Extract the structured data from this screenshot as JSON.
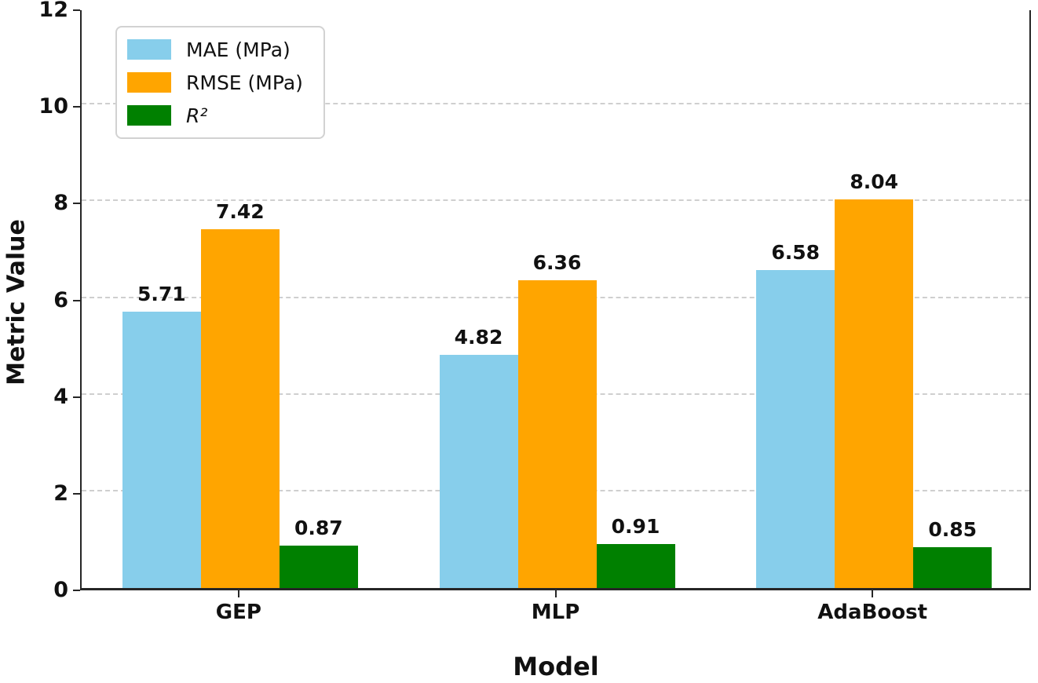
{
  "chart_data": {
    "type": "bar",
    "title": "",
    "xlabel": "Model",
    "ylabel": "Metric Value",
    "categories": [
      "GEP",
      "MLP",
      "AdaBoost"
    ],
    "series": [
      {
        "name": "MAE (MPa)",
        "color": "#87CEEB",
        "italic": false,
        "values": [
          5.71,
          4.82,
          6.58
        ]
      },
      {
        "name": "RMSE (MPa)",
        "color": "#FFA500",
        "italic": false,
        "values": [
          7.42,
          6.36,
          8.04
        ]
      },
      {
        "name": "R²",
        "color": "#008000",
        "italic": true,
        "values": [
          0.87,
          0.91,
          0.85
        ]
      }
    ],
    "bar_value_labels": [
      [
        "5.71",
        "4.82",
        "6.58"
      ],
      [
        "7.42",
        "6.36",
        "8.04"
      ],
      [
        "0.87",
        "0.91",
        "0.85"
      ]
    ],
    "ylim": [
      0,
      12
    ],
    "yticks": [
      "0",
      "2",
      "4",
      "6",
      "8",
      "10",
      "12"
    ],
    "gridline_values": [
      2,
      4,
      6,
      8,
      10
    ],
    "grid_style": "dashed-horizontal",
    "legend_position": "upper-left"
  },
  "colors": {
    "grid": "#cfcfcf",
    "spine": "#262626",
    "text": "#111111",
    "legend_border": "#d2d2d2",
    "background": "#ffffff"
  }
}
